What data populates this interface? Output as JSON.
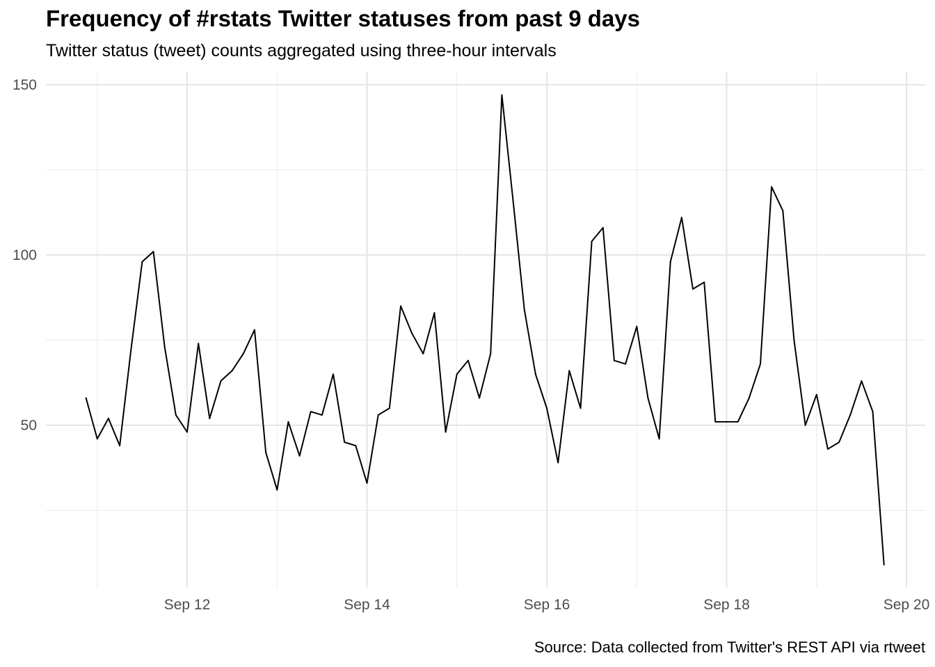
{
  "chart_data": {
    "type": "line",
    "title": "Frequency of #rstats Twitter statuses from past 9 days",
    "subtitle": "Twitter status (tweet) counts aggregated using three-hour intervals",
    "caption": "Source: Data collected from Twitter's REST API via rtweet",
    "xlabel": "",
    "ylabel": "",
    "x_ticks": [
      {
        "date": "2023-09-12",
        "label": "Sep 12"
      },
      {
        "date": "2023-09-14",
        "label": "Sep 14"
      },
      {
        "date": "2023-09-16",
        "label": "Sep 16"
      },
      {
        "date": "2023-09-18",
        "label": "Sep 18"
      },
      {
        "date": "2023-09-20",
        "label": "Sep 20"
      }
    ],
    "y_ticks": [
      50,
      100,
      150
    ],
    "xlim": [
      "2023-09-10 21:00",
      "2023-09-20 00:00"
    ],
    "ylim": [
      6,
      153
    ],
    "grid": true,
    "series": [
      {
        "color": "#000000",
        "x": [
          "2023-09-10 21:00",
          "2023-09-11 00:00",
          "2023-09-11 03:00",
          "2023-09-11 06:00",
          "2023-09-11 09:00",
          "2023-09-11 12:00",
          "2023-09-11 15:00",
          "2023-09-11 18:00",
          "2023-09-11 21:00",
          "2023-09-12 00:00",
          "2023-09-12 03:00",
          "2023-09-12 06:00",
          "2023-09-12 09:00",
          "2023-09-12 12:00",
          "2023-09-12 15:00",
          "2023-09-12 18:00",
          "2023-09-12 21:00",
          "2023-09-13 00:00",
          "2023-09-13 03:00",
          "2023-09-13 06:00",
          "2023-09-13 09:00",
          "2023-09-13 12:00",
          "2023-09-13 15:00",
          "2023-09-13 18:00",
          "2023-09-13 21:00",
          "2023-09-14 00:00",
          "2023-09-14 03:00",
          "2023-09-14 06:00",
          "2023-09-14 09:00",
          "2023-09-14 12:00",
          "2023-09-14 15:00",
          "2023-09-14 18:00",
          "2023-09-14 21:00",
          "2023-09-15 00:00",
          "2023-09-15 03:00",
          "2023-09-15 06:00",
          "2023-09-15 09:00",
          "2023-09-15 12:00",
          "2023-09-15 15:00",
          "2023-09-15 18:00",
          "2023-09-15 21:00",
          "2023-09-16 00:00",
          "2023-09-16 03:00",
          "2023-09-16 06:00",
          "2023-09-16 09:00",
          "2023-09-16 12:00",
          "2023-09-16 15:00",
          "2023-09-16 18:00",
          "2023-09-16 21:00",
          "2023-09-17 00:00",
          "2023-09-17 03:00",
          "2023-09-17 06:00",
          "2023-09-17 09:00",
          "2023-09-17 12:00",
          "2023-09-17 15:00",
          "2023-09-17 18:00",
          "2023-09-17 21:00",
          "2023-09-18 00:00",
          "2023-09-18 03:00",
          "2023-09-18 06:00",
          "2023-09-18 09:00",
          "2023-09-18 12:00",
          "2023-09-18 15:00",
          "2023-09-18 18:00",
          "2023-09-18 21:00",
          "2023-09-19 00:00",
          "2023-09-19 03:00",
          "2023-09-19 06:00",
          "2023-09-19 09:00",
          "2023-09-19 12:00",
          "2023-09-19 15:00",
          "2023-09-19 18:00"
        ],
        "values": [
          58,
          46,
          52,
          44,
          72,
          98,
          101,
          73,
          53,
          48,
          74,
          52,
          63,
          66,
          71,
          78,
          42,
          31,
          51,
          41,
          54,
          53,
          65,
          45,
          44,
          33,
          53,
          55,
          85,
          77,
          71,
          83,
          48,
          65,
          69,
          58,
          71,
          147,
          116,
          84,
          65,
          55,
          39,
          66,
          55,
          104,
          108,
          69,
          68,
          79,
          58,
          46,
          98,
          111,
          90,
          92,
          51,
          51,
          51,
          58,
          68,
          120,
          113,
          75,
          50,
          59,
          43,
          45,
          53,
          63,
          54,
          9
        ]
      }
    ]
  }
}
